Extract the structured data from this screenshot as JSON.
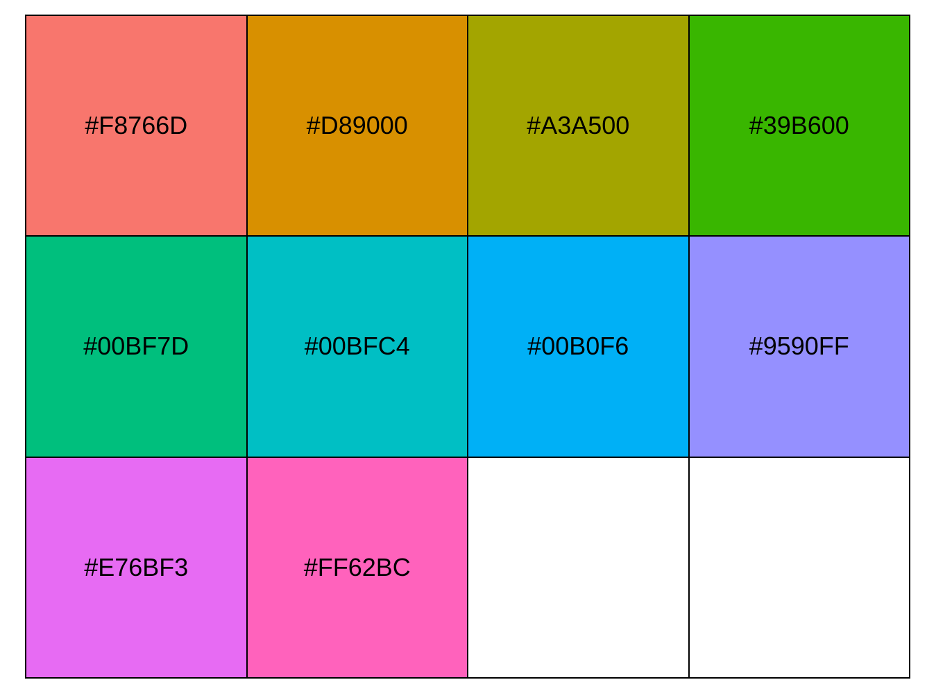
{
  "palette": {
    "swatches": [
      {
        "label": "#F8766D",
        "color": "#F8766D"
      },
      {
        "label": "#D89000",
        "color": "#D89000"
      },
      {
        "label": "#A3A500",
        "color": "#A3A500"
      },
      {
        "label": "#39B600",
        "color": "#39B600"
      },
      {
        "label": "#00BF7D",
        "color": "#00BF7D"
      },
      {
        "label": "#00BFC4",
        "color": "#00BFC4"
      },
      {
        "label": "#00B0F6",
        "color": "#00B0F6"
      },
      {
        "label": "#9590FF",
        "color": "#9590FF"
      },
      {
        "label": "#E76BF3",
        "color": "#E76BF3"
      },
      {
        "label": "#FF62BC",
        "color": "#FF62BC"
      },
      {
        "label": "",
        "color": "#FFFFFF"
      },
      {
        "label": "",
        "color": "#FFFFFF"
      }
    ]
  }
}
